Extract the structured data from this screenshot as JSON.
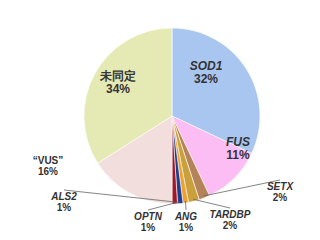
{
  "chart_data": {
    "type": "pie",
    "categories": [
      "SOD1",
      "FUS",
      "SETX",
      "TARDBP",
      "ANG",
      "OPTN",
      "ALS2",
      "“VUS”",
      "未同定"
    ],
    "values": [
      32,
      11,
      2,
      2,
      1,
      1,
      1,
      16,
      34
    ],
    "value_labels": [
      "32%",
      "11%",
      "2%",
      "2%",
      "1%",
      "1%",
      "1%",
      "16%",
      "34%"
    ],
    "colors": [
      "#a9c6f0",
      "#fcbcf4",
      "#b5835a",
      "#c9a03c",
      "#f0a030",
      "#203c8c",
      "#a01828",
      "#f2dedd",
      "#e5e9b4"
    ],
    "data_labels": true
  }
}
